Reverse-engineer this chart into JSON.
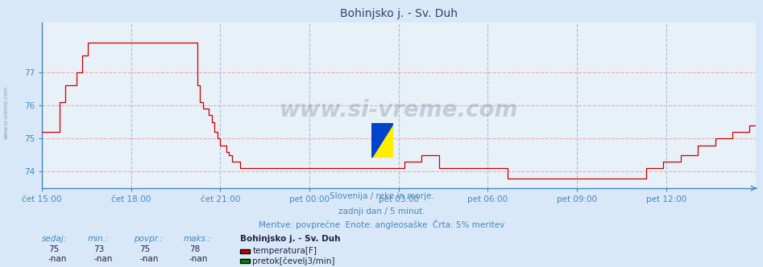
{
  "title": "Bohinjsko j. - Sv. Duh",
  "bg_color": "#d8e8f8",
  "plot_bg_color": "#e8f0f8",
  "line_color": "#cc0000",
  "grid_h_color": "#e8b0b0",
  "grid_v_color": "#b0c0d8",
  "xlabel_color": "#4488bb",
  "ylabel_color": "#4488bb",
  "title_color": "#334466",
  "text_color": "#4488bb",
  "ylim": [
    73.5,
    78.5
  ],
  "yticks": [
    74,
    75,
    76,
    77
  ],
  "xtick_labels": [
    "čet 15:00",
    "čet 18:00",
    "čet 21:00",
    "pet 00:00",
    "pet 03:00",
    "pet 06:00",
    "pet 09:00",
    "pet 12:00"
  ],
  "subtitle1": "Slovenija / reke in morje.",
  "subtitle2": "zadnji dan / 5 minut.",
  "subtitle3": "Meritve: povprečne  Enote: angleosaške  Črta: 5% meritev",
  "legend_title": "Bohinjsko j. - Sv. Duh",
  "legend_items": [
    {
      "label": "temperatura[F]",
      "color": "#cc0000"
    },
    {
      "label": "pretok[čevelj3/min]",
      "color": "#008800"
    }
  ],
  "stats_headers": [
    "sedaj:",
    "min.:",
    "povpr.:",
    "maks.:"
  ],
  "stats_temp": [
    "75",
    "73",
    "75",
    "78"
  ],
  "stats_flow": [
    "-nan",
    "-nan",
    "-nan",
    "-nan"
  ],
  "watermark": "www.si-vreme.com",
  "left_label": "www.si-vreme.com",
  "temp_data": [
    75.2,
    75.2,
    75.2,
    75.2,
    75.2,
    75.2,
    76.1,
    76.1,
    76.6,
    76.6,
    76.6,
    76.6,
    77.0,
    77.0,
    77.5,
    77.5,
    77.9,
    77.9,
    77.9,
    77.9,
    77.9,
    77.9,
    77.9,
    77.9,
    77.9,
    77.9,
    77.9,
    77.9,
    77.9,
    77.9,
    77.9,
    77.9,
    77.9,
    77.9,
    77.9,
    77.9,
    77.9,
    77.9,
    77.9,
    77.9,
    77.9,
    77.9,
    77.9,
    77.9,
    77.9,
    77.9,
    77.9,
    77.9,
    77.9,
    77.9,
    77.9,
    77.9,
    77.9,
    77.9,
    76.6,
    76.1,
    75.9,
    75.9,
    75.7,
    75.5,
    75.2,
    75.0,
    74.8,
    74.8,
    74.6,
    74.5,
    74.3,
    74.3,
    74.3,
    74.1,
    74.1,
    74.1,
    74.1,
    74.1,
    74.1,
    74.1,
    74.1,
    74.1,
    74.1,
    74.1,
    74.1,
    74.1,
    74.1,
    74.1,
    74.1,
    74.1,
    74.1,
    74.1,
    74.1,
    74.1,
    74.1,
    74.1,
    74.1,
    74.1,
    74.1,
    74.1,
    74.1,
    74.1,
    74.1,
    74.1,
    74.1,
    74.1,
    74.1,
    74.1,
    74.1,
    74.1,
    74.1,
    74.1,
    74.1,
    74.1,
    74.1,
    74.1,
    74.1,
    74.1,
    74.1,
    74.1,
    74.1,
    74.1,
    74.1,
    74.1,
    74.1,
    74.1,
    74.1,
    74.1,
    74.1,
    74.1,
    74.3,
    74.3,
    74.3,
    74.3,
    74.3,
    74.3,
    74.5,
    74.5,
    74.5,
    74.5,
    74.5,
    74.5,
    74.1,
    74.1,
    74.1,
    74.1,
    74.1,
    74.1,
    74.1,
    74.1,
    74.1,
    74.1,
    74.1,
    74.1,
    74.1,
    74.1,
    74.1,
    74.1,
    74.1,
    74.1,
    74.1,
    74.1,
    74.1,
    74.1,
    74.1,
    74.1,
    73.8,
    73.8,
    73.8,
    73.8,
    73.8,
    73.8,
    73.8,
    73.8,
    73.8,
    73.8,
    73.8,
    73.8,
    73.8,
    73.8,
    73.8,
    73.8,
    73.8,
    73.8,
    73.8,
    73.8,
    73.8,
    73.8,
    73.8,
    73.8,
    73.8,
    73.8,
    73.8,
    73.8,
    73.8,
    73.8,
    73.8,
    73.8,
    73.8,
    73.8,
    73.8,
    73.8,
    73.8,
    73.8,
    73.8,
    73.8,
    73.8,
    73.8,
    73.8,
    73.8,
    73.8,
    73.8,
    73.8,
    73.8,
    74.1,
    74.1,
    74.1,
    74.1,
    74.1,
    74.1,
    74.3,
    74.3,
    74.3,
    74.3,
    74.3,
    74.3,
    74.5,
    74.5,
    74.5,
    74.5,
    74.5,
    74.5,
    74.8,
    74.8,
    74.8,
    74.8,
    74.8,
    74.8,
    75.0,
    75.0,
    75.0,
    75.0,
    75.0,
    75.0,
    75.2,
    75.2,
    75.2,
    75.2,
    75.2,
    75.2,
    75.4,
    75.4,
    75.4
  ]
}
